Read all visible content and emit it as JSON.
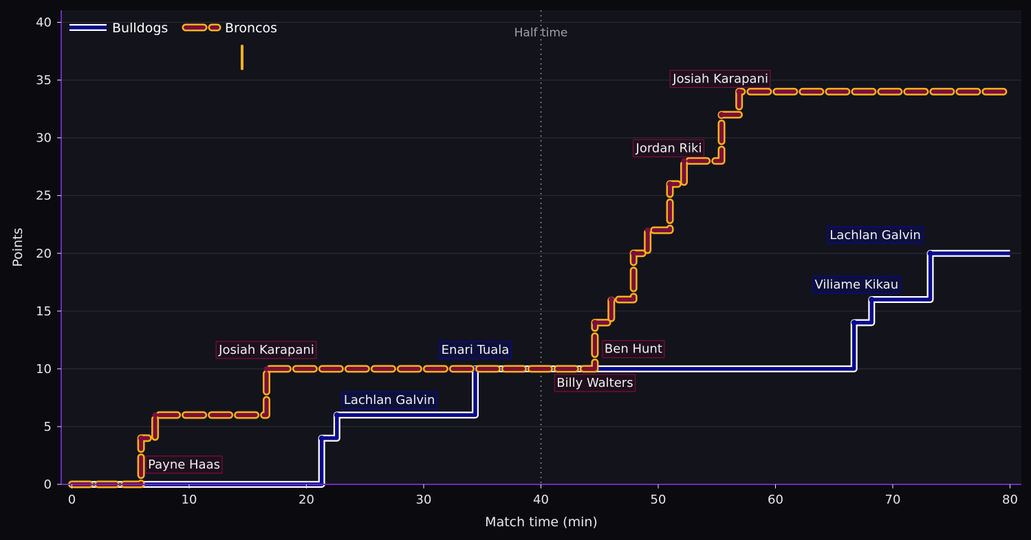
{
  "chart_data": {
    "type": "line",
    "step": true,
    "title": "",
    "xlabel": "Match time (min)",
    "ylabel": "Points",
    "xlim": [
      -1,
      81
    ],
    "ylim": [
      0,
      41
    ],
    "xticks": [
      0,
      10,
      20,
      30,
      40,
      50,
      60,
      70,
      80
    ],
    "yticks": [
      0,
      5,
      10,
      15,
      20,
      25,
      30,
      35,
      40
    ],
    "grid": "horizontal",
    "legend_position": "top-left",
    "reference_lines": [
      {
        "axis": "x",
        "value": 40,
        "label": "Half time",
        "style": "dotted"
      }
    ],
    "series": [
      {
        "name": "Bulldogs",
        "style": "solid",
        "color": "#0a0a8c",
        "outline": "#ffffff",
        "x": [
          0,
          21.3,
          22.6,
          34.4,
          66.7,
          68.2,
          73.2,
          80
        ],
        "y": [
          0,
          4,
          6,
          10,
          14,
          16,
          20,
          20
        ],
        "annotations": [
          {
            "x": 22.6,
            "y": 6,
            "text": "Lachlan Galvin"
          },
          {
            "x": 34.4,
            "y": 10,
            "text": "Enari Tuala"
          },
          {
            "x": 68.2,
            "y": 16,
            "text": "Viliame Kikau"
          },
          {
            "x": 73.2,
            "y": 20,
            "text": "Lachlan Galvin"
          }
        ]
      },
      {
        "name": "Broncos",
        "style": "dashed",
        "color": "#7a0f3c",
        "outline": "#f6b21b",
        "x": [
          0,
          5.9,
          7.1,
          16.6,
          44.6,
          46.0,
          47.9,
          49.1,
          51.0,
          52.2,
          55.4,
          56.9,
          80
        ],
        "y": [
          0,
          4,
          6,
          10,
          14,
          16,
          20,
          22,
          26,
          28,
          32,
          34,
          34
        ],
        "annotations": [
          {
            "x": 5.9,
            "y": 4,
            "text": "Payne Haas"
          },
          {
            "x": 16.6,
            "y": 10,
            "text": "Josiah Karapani"
          },
          {
            "x": 44.6,
            "y": 14,
            "text": "Ben Hunt"
          },
          {
            "x": 44.6,
            "y": 10,
            "text": "Billy Walters"
          },
          {
            "x": 52.2,
            "y": 28,
            "text": "Jordan Riki"
          },
          {
            "x": 56.9,
            "y": 34,
            "text": "Josiah Karapani"
          }
        ]
      }
    ]
  },
  "colors": {
    "figure_bg": "#0b0b0f",
    "plot_bg": "#13131b",
    "grid": "#2b2b35",
    "spine": "#6a2bbf",
    "text": "#e6e6ea"
  }
}
